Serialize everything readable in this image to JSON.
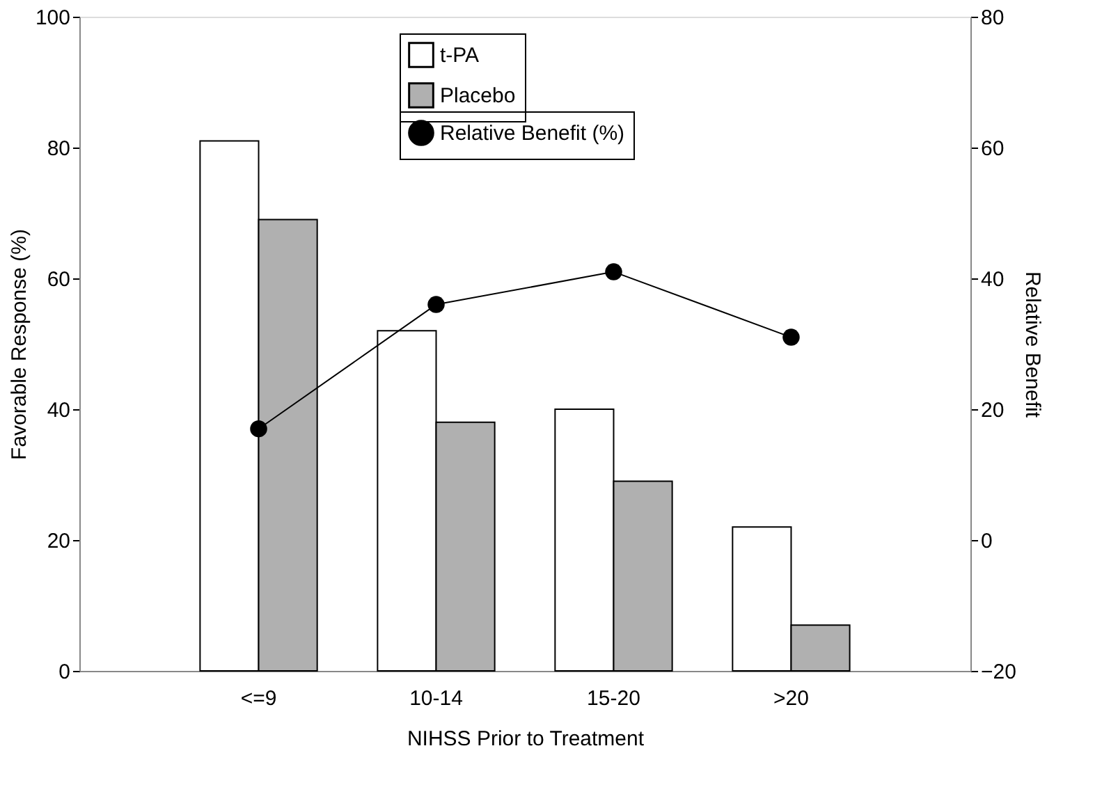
{
  "chart_data": {
    "type": "bar",
    "xlabel": "NIHSS Prior to Treatment",
    "ylabel": "Favorable Response (%)",
    "y2label": "Relative Benefit",
    "categories": [
      "<=9",
      "10-14",
      "15-20",
      ">20"
    ],
    "series": [
      {
        "name": "t-PA",
        "color": "#ffffff",
        "values": [
          81,
          52,
          40,
          22
        ]
      },
      {
        "name": "Placebo",
        "color": "#b0b0b0",
        "values": [
          69,
          38,
          29,
          7
        ]
      },
      {
        "name": "Relative Benefit (%)",
        "type": "line",
        "axis": "y2",
        "color": "#000000",
        "values": [
          17,
          36,
          41,
          31
        ]
      }
    ],
    "ylim": [
      0,
      100
    ],
    "yticks": [
      0,
      20,
      40,
      60,
      80,
      100
    ],
    "y2lim": [
      -20,
      80
    ],
    "y2ticks": [
      -20,
      0,
      20,
      40,
      60,
      80
    ],
    "legend": "top",
    "marker": "circle",
    "grid": false
  }
}
